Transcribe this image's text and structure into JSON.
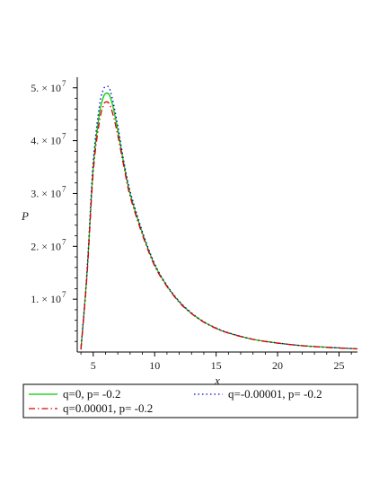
{
  "chart_data": {
    "type": "line",
    "xlabel": "x",
    "ylabel": "P",
    "xlim": [
      3.7,
      26.5
    ],
    "ylim": [
      0,
      52000000
    ],
    "xticks": [
      5,
      10,
      15,
      20,
      25
    ],
    "yticks": [
      {
        "value": 10000000,
        "label": "1. × 10",
        "exp": "7"
      },
      {
        "value": 20000000,
        "label": "2. × 10",
        "exp": "7"
      },
      {
        "value": 30000000,
        "label": "3. × 10",
        "exp": "7"
      },
      {
        "value": 40000000,
        "label": "4. × 10",
        "exp": "7"
      },
      {
        "value": 50000000,
        "label": "5. × 10",
        "exp": "7"
      }
    ],
    "grid": false,
    "legend_position": "bottom",
    "series": [
      {
        "name": "q=0, p= -0.2",
        "color": "#00cc00",
        "style": "solid",
        "x": [
          4.0,
          4.5,
          5.0,
          5.5,
          5.8,
          6.0,
          6.3,
          6.6,
          7.0,
          7.5,
          8.0,
          9.0,
          10.0,
          11.0,
          12.0,
          13.0,
          14.0,
          15.0,
          16.0,
          18.0,
          20.0,
          22.0,
          24.0,
          26.5
        ],
        "y": [
          500000,
          15000000,
          35000000,
          45000000,
          48000000,
          48900000,
          48700000,
          46500000,
          42000000,
          35500000,
          30000000,
          22500000,
          16500000,
          12500000,
          9500000,
          7300000,
          5700000,
          4500000,
          3600000,
          2400000,
          1700000,
          1200000,
          900000,
          600000
        ]
      },
      {
        "name": "q=-0.00001, p= -0.2",
        "color": "#0000cc",
        "style": "dotted",
        "x": [
          4.0,
          4.5,
          5.0,
          5.5,
          5.8,
          6.0,
          6.3,
          6.6,
          7.0,
          7.5,
          8.0,
          9.0,
          10.0,
          11.0,
          12.0,
          13.0,
          14.0,
          15.0,
          16.0,
          18.0,
          20.0,
          22.0,
          24.0,
          26.5
        ],
        "y": [
          500000,
          15500000,
          36000000,
          46500000,
          49500000,
          50200000,
          50000000,
          47500000,
          42800000,
          36000000,
          30500000,
          22800000,
          16700000,
          12600000,
          9600000,
          7400000,
          5750000,
          4550000,
          3650000,
          2420000,
          1720000,
          1210000,
          910000,
          610000
        ]
      },
      {
        "name": "q=0.00001, p= -0.2",
        "color": "#dd0000",
        "style": "dashdot",
        "x": [
          4.0,
          4.5,
          5.0,
          5.5,
          5.8,
          6.0,
          6.3,
          6.6,
          7.0,
          7.5,
          8.0,
          9.0,
          10.0,
          11.0,
          12.0,
          13.0,
          14.0,
          15.0,
          16.0,
          18.0,
          20.0,
          22.0,
          24.0,
          26.5
        ],
        "y": [
          500000,
          14500000,
          34000000,
          43500000,
          46500000,
          47300000,
          47000000,
          45000000,
          41000000,
          35000000,
          29500000,
          22200000,
          16300000,
          12400000,
          9400000,
          7250000,
          5650000,
          4470000,
          3580000,
          2390000,
          1690000,
          1190000,
          890000,
          590000
        ]
      }
    ]
  }
}
